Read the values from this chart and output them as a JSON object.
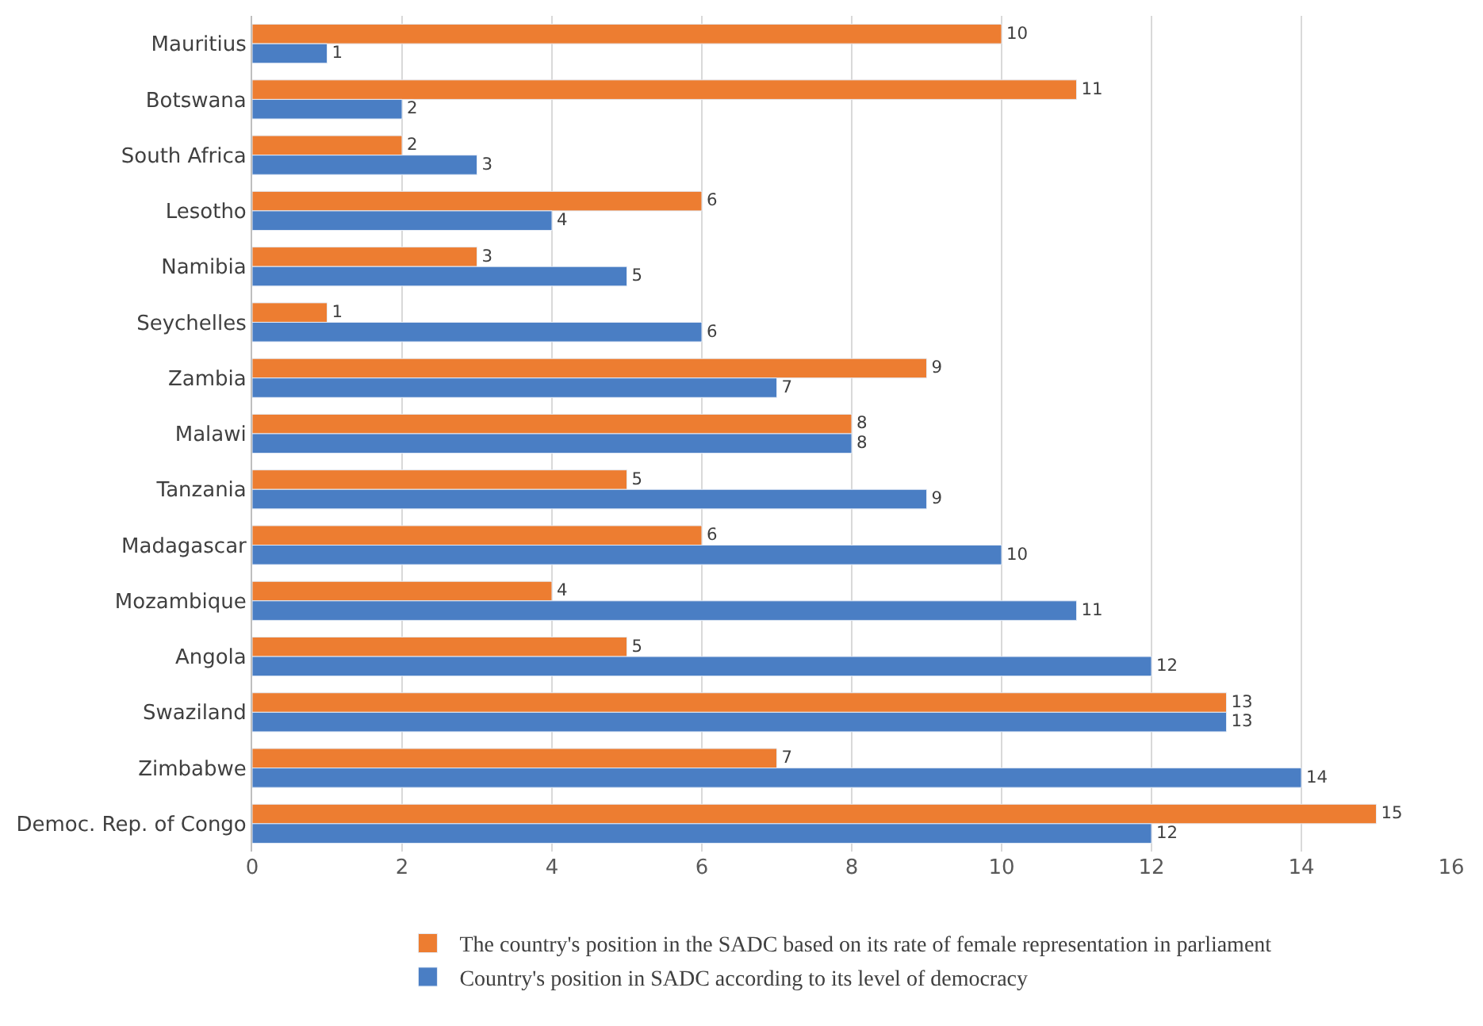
{
  "chart_data": {
    "type": "bar",
    "orientation": "horizontal",
    "categories": [
      "Mauritius",
      "Botswana",
      "South Africa",
      "Lesotho",
      "Namibia",
      "Seychelles",
      "Zambia",
      "Malawi",
      "Tanzania",
      "Madagascar",
      "Mozambique",
      "Angola",
      "Swaziland",
      "Zimbabwe",
      "Democ. Rep. of Congo"
    ],
    "series": [
      {
        "name": "The country's position in the SADC based on its rate of female representation in parliament",
        "color": "#ed7d31",
        "values": [
          10,
          11,
          2,
          6,
          3,
          1,
          9,
          8,
          5,
          6,
          4,
          5,
          13,
          7,
          15
        ]
      },
      {
        "name": "Country's position in SADC according to its level of democracy",
        "color": "#4a7ec4",
        "values": [
          1,
          2,
          3,
          4,
          5,
          6,
          7,
          8,
          9,
          10,
          11,
          12,
          13,
          14,
          12
        ]
      }
    ],
    "xlim": [
      0,
      16
    ],
    "xticks": [
      0,
      2,
      4,
      6,
      8,
      10,
      12,
      14,
      16
    ],
    "grid": "x",
    "legend": "bottom",
    "data_labels": true
  }
}
